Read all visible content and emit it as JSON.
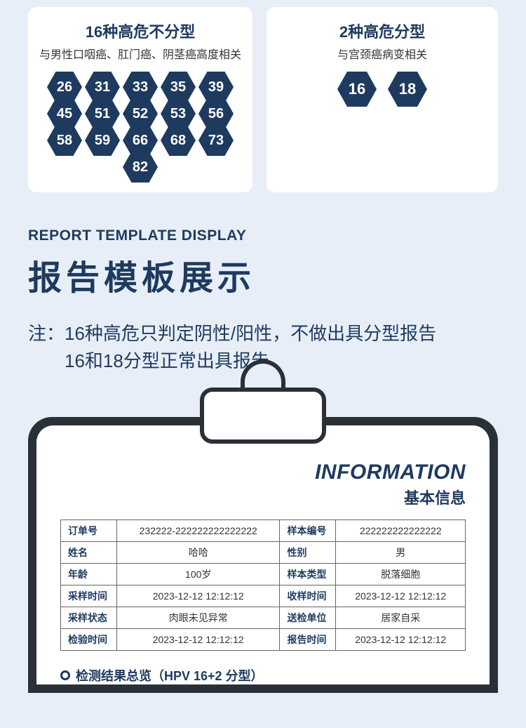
{
  "left_card": {
    "title": "16种高危不分型",
    "subtitle": "与男性口咽癌、肛门癌、阴茎癌高度相关",
    "hex_rows": [
      [
        "26",
        "31",
        "33",
        "35",
        "39"
      ],
      [
        "45",
        "51",
        "52",
        "53",
        "56"
      ],
      [
        "58",
        "59",
        "66",
        "68",
        "73"
      ],
      [
        "82"
      ]
    ],
    "hex_color": "#1e3a5f"
  },
  "right_card": {
    "title": "2种高危分型",
    "subtitle": "与宫颈癌病变相关",
    "hex_rows": [
      [
        "16",
        "18"
      ]
    ],
    "hex_color": "#1e3a5f"
  },
  "report": {
    "eng": "REPORT TEMPLATE DISPLAY",
    "cn": "报告模板展示",
    "note_prefix": "注：",
    "note_line1": "16种高危只判定阴性/阳性，不做出具分型报告",
    "note_line2": "16和18分型正常出具报告"
  },
  "clipboard": {
    "info_eng": "INFORMATION",
    "info_cn": "基本信息",
    "table": {
      "rows": [
        [
          "订单号",
          "232222-222222222222222",
          "样本编号",
          "222222222222222"
        ],
        [
          "姓名",
          "哈哈",
          "性别",
          "男"
        ],
        [
          "年龄",
          "100岁",
          "样本类型",
          "脱落细胞"
        ],
        [
          "采样时间",
          "2023-12-12 12:12:12",
          "收样时间",
          "2023-12-12 12:12:12"
        ],
        [
          "采样状态",
          "肉眼未见异常",
          "送检单位",
          "居家自采"
        ],
        [
          "检验时间",
          "2023-12-12 12:12:12",
          "报告时间",
          "2023-12-12 12:12:12"
        ]
      ]
    },
    "result_title": "检测结果总览（HPV 16+2 分型）"
  },
  "colors": {
    "page_bg": "#e8eef7",
    "card_bg": "#ffffff",
    "primary": "#1e3a5f",
    "board": "#2b3038"
  }
}
